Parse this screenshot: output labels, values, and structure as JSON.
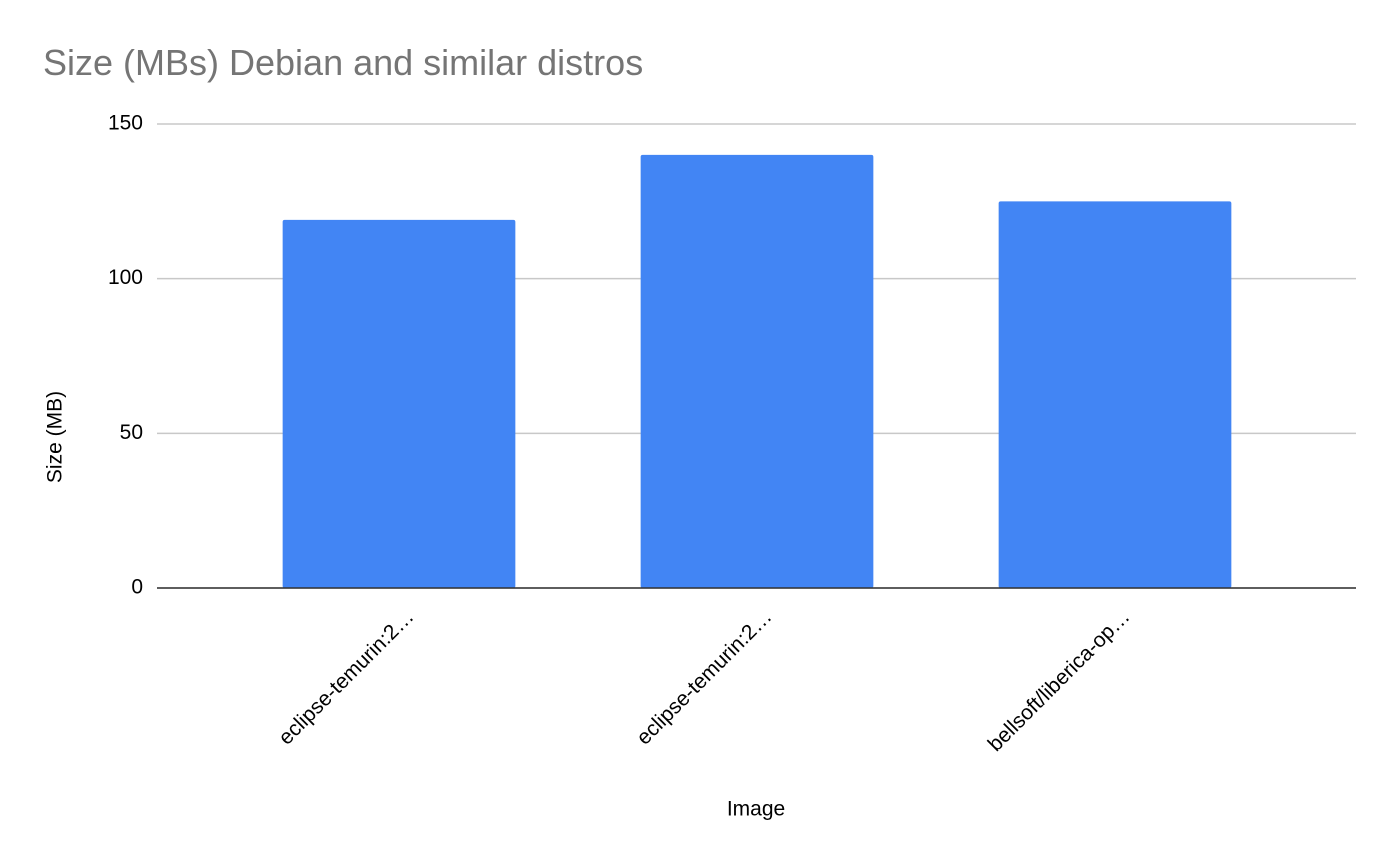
{
  "chart_data": {
    "type": "bar",
    "title": "Size (MBs) Debian and similar distros",
    "x_label": "Image",
    "y_label": "Size (MB)",
    "categories": [
      "eclipse-temurin:2…",
      "eclipse-temurin:2…",
      "bellsoft/liberica-op…"
    ],
    "values": [
      119,
      140,
      125
    ],
    "color": "#4285f4",
    "ylim": [
      0,
      150
    ],
    "yticks": [
      0,
      50,
      100,
      150
    ],
    "grid": true
  }
}
